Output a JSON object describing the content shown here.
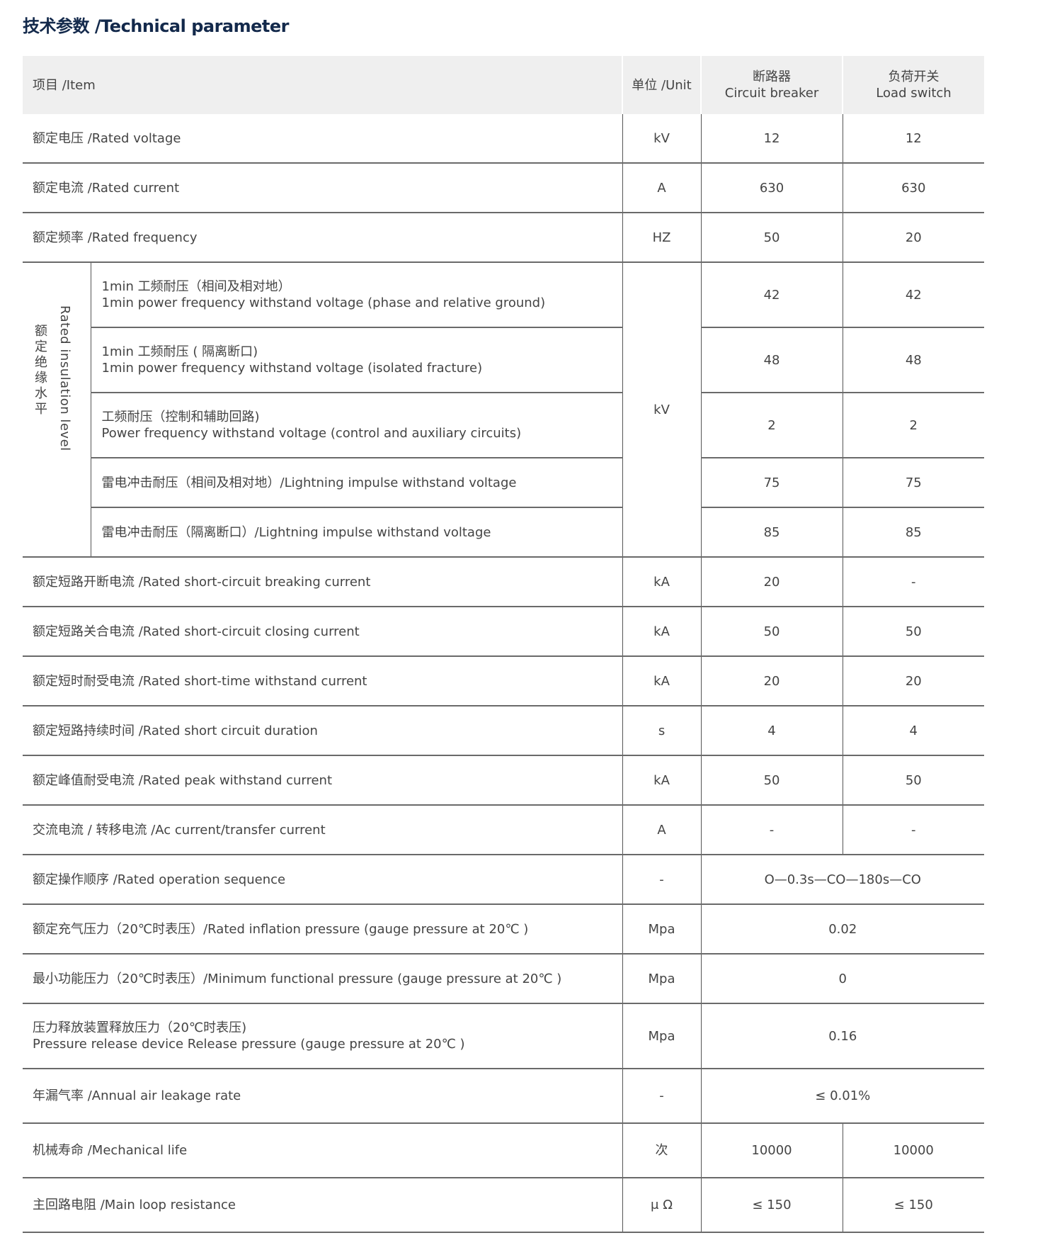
{
  "title": "技术参数 /Technical parameter",
  "header": {
    "item": "项目 /Item",
    "unit": "单位 /Unit",
    "cb_cn": "断路器",
    "cb_en": "Circuit breaker",
    "ls_cn": "负荷开关",
    "ls_en": "Load switch"
  },
  "group": {
    "label_cn": "额定绝缘水平",
    "label_en": "Rated insulation level",
    "unit": "kV"
  },
  "rows": [
    {
      "item": "额定电压 /Rated voltage",
      "unit": "kV",
      "cb": "12",
      "ls": "12"
    },
    {
      "item": "额定电流 /Rated current",
      "unit": "A",
      "cb": "630",
      "ls": "630"
    },
    {
      "item": "额定频率 /Rated frequency",
      "unit": "HZ",
      "cb": "50",
      "ls": "20"
    },
    {
      "group": true,
      "item": "1min 工频耐压（相间及相对地）",
      "item2": "1min power frequency withstand voltage (phase and relative ground)",
      "cb": "42",
      "ls": "42"
    },
    {
      "group": true,
      "item": "1min 工频耐压 ( 隔离断口)",
      "item2": "1min power frequency withstand voltage (isolated fracture)",
      "cb": "48",
      "ls": "48"
    },
    {
      "group": true,
      "item": "工频耐压（控制和辅助回路)",
      "item2": "Power frequency withstand voltage (control and auxiliary circuits)",
      "cb": "2",
      "ls": "2"
    },
    {
      "group": true,
      "item": "雷电冲击耐压（相间及相对地）/Lightning impulse withstand voltage",
      "cb": "75",
      "ls": "75"
    },
    {
      "group": true,
      "item": "雷电冲击耐压（隔离断口）/Lightning impulse withstand voltage",
      "cb": "85",
      "ls": "85"
    },
    {
      "item": "额定短路开断电流 /Rated short-circuit breaking current",
      "unit": "kA",
      "cb": "20",
      "ls": "-"
    },
    {
      "item": "额定短路关合电流 /Rated short-circuit closing current",
      "unit": "kA",
      "cb": "50",
      "ls": "50"
    },
    {
      "item": "额定短时耐受电流 /Rated short-time withstand current",
      "unit": "kA",
      "cb": "20",
      "ls": "20"
    },
    {
      "item": "额定短路持续时间 /Rated short circuit duration",
      "unit": "s",
      "cb": "4",
      "ls": "4"
    },
    {
      "item": "额定峰值耐受电流 /Rated peak withstand current",
      "unit": "kA",
      "cb": "50",
      "ls": "50"
    },
    {
      "item": "交流电流 / 转移电流 /Ac current/transfer current",
      "unit": "A",
      "cb": "-",
      "ls": "-"
    },
    {
      "item": "额定操作顺序 /Rated operation sequence",
      "unit": "-",
      "both": "O—0.3s—CO—180s—CO"
    },
    {
      "item": "额定充气压力（20℃时表压）/Rated inflation pressure (gauge pressure at 20℃ )",
      "unit": "Mpa",
      "both": "0.02"
    },
    {
      "item": "最小功能压力（20℃时表压）/Minimum functional pressure (gauge pressure at 20℃ )",
      "unit": "Mpa",
      "both": "0"
    },
    {
      "item": "压力释放装置释放压力（20℃时表压)",
      "item2": "Pressure release device Release pressure (gauge pressure at 20℃ )",
      "unit": "Mpa",
      "both": "0.16"
    },
    {
      "item": "年漏气率 /Annual air leakage rate",
      "unit": "-",
      "both": "≤ 0.01%"
    },
    {
      "item": "机械寿命 /Mechanical life",
      "unit": "次",
      "cb": "10000",
      "ls": "10000"
    },
    {
      "item": "主回路电阻 /Main loop resistance",
      "unit": "μ Ω",
      "cb": "≤ 150",
      "ls": "≤ 150"
    }
  ]
}
